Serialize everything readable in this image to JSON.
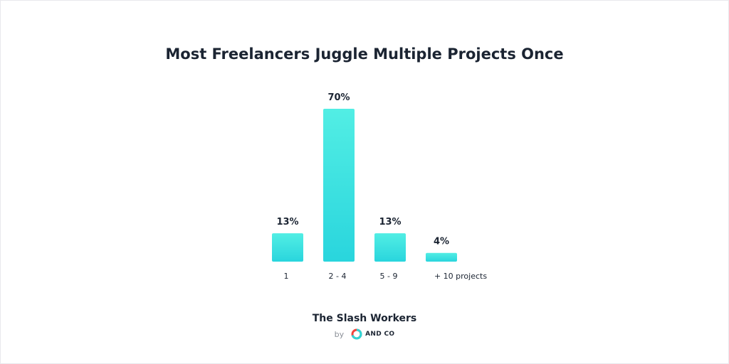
{
  "title": "Most Freelancers Juggle Multiple Projects Once",
  "footer": {
    "brand": "The Slash Workers",
    "by": "by",
    "logo_text": "AND CO"
  },
  "colors": {
    "bar_top": "#52eee4",
    "bar_bottom": "#29d5dd",
    "text_dark": "#1b2432",
    "text_muted": "#8b9098",
    "logo_ring_teal": "#2fd6d6",
    "logo_ring_red": "#f0453c"
  },
  "chart_data": {
    "type": "bar",
    "categories": [
      "1",
      "2 - 4",
      "5 - 9",
      "+ 10 projects"
    ],
    "values": [
      13,
      70,
      13,
      4
    ],
    "value_labels": [
      "13%",
      "70%",
      "13%",
      "4%"
    ],
    "unit": "%",
    "ylim": [
      0,
      70
    ],
    "grid": false,
    "legend": "none"
  }
}
